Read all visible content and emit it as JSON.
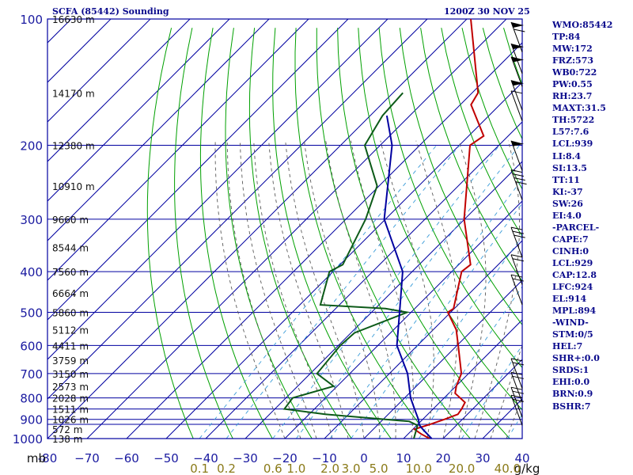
{
  "header": {
    "title": "SCFA (85442) Sounding",
    "datetime": "1200Z 30 NOV 25"
  },
  "indices": [
    "WMO:85442",
    "TP:84",
    "MW:172",
    "FRZ:573",
    "WB0:722",
    "PW:0.55",
    "RH:23.7",
    "MAXT:31.5",
    "TH:5722",
    "L57:7.6",
    "LCL:939",
    "LI:8.4",
    "SI:13.5",
    "TT:11",
    "KI:-37",
    "SW:26",
    "EI:4.0",
    "-PARCEL-",
    "CAPE:7",
    "CINH:0",
    "LCL:929",
    "CAP:12.8",
    "LFC:924",
    "EL:914",
    "MPL:894",
    "-WIND-",
    "STM:0/5",
    "HEL:7",
    "SHR+:0.0",
    "SRDS:1",
    "EHI:0.0",
    "BRN:0.9",
    "BSHR:7"
  ],
  "chart_data": {
    "type": "line",
    "title": "SCFA (85442) Sounding",
    "y_axis": {
      "unit": "mb",
      "scale": "log",
      "range": [
        1000,
        100
      ],
      "ticks": [
        {
          "p": 100,
          "label": "100"
        },
        {
          "p": 200,
          "label": "200"
        },
        {
          "p": 300,
          "label": "300"
        },
        {
          "p": 400,
          "label": "400"
        },
        {
          "p": 500,
          "label": "500"
        },
        {
          "p": 600,
          "label": "600"
        },
        {
          "p": 700,
          "label": "700"
        },
        {
          "p": 800,
          "label": "800"
        },
        {
          "p": 900,
          "label": "900"
        },
        {
          "p": 1000,
          "label": "1000"
        }
      ],
      "extra_gridlines": [
        850,
        925
      ]
    },
    "x_axis": {
      "range": [
        -80,
        40
      ],
      "ticks": [
        {
          "t": -80,
          "label": "-80"
        },
        {
          "t": -70,
          "label": "−70"
        },
        {
          "t": -60,
          "label": "−60"
        },
        {
          "t": -50,
          "label": "−50"
        },
        {
          "t": -40,
          "label": "−40"
        },
        {
          "t": -30,
          "label": "−30"
        },
        {
          "t": -20,
          "label": "−20"
        },
        {
          "t": -10,
          "label": "−10"
        },
        {
          "t": 0,
          "label": "0"
        },
        {
          "t": 10,
          "label": "10"
        },
        {
          "t": 20,
          "label": "20"
        },
        {
          "t": 30,
          "label": "30"
        },
        {
          "t": 40,
          "label": "40"
        }
      ],
      "unit_label": "mb",
      "unit_label_right": "g/kg"
    },
    "mixing_ratio_labels": [
      "0.1",
      "0.2",
      "0.6",
      "1.0",
      "2.0",
      "3.0",
      "5.0",
      "10.0",
      "20.0",
      "40.0"
    ],
    "height_labels": [
      {
        "p": 100,
        "label": "16630 m"
      },
      {
        "p": 150,
        "label": "14170 m"
      },
      {
        "p": 200,
        "label": "12380 m"
      },
      {
        "p": 250,
        "label": "10910 m"
      },
      {
        "p": 300,
        "label": "9660 m"
      },
      {
        "p": 350,
        "label": "8544 m"
      },
      {
        "p": 400,
        "label": "7560 m"
      },
      {
        "p": 450,
        "label": "6664 m"
      },
      {
        "p": 500,
        "label": "5860 m"
      },
      {
        "p": 550,
        "label": "5112 m"
      },
      {
        "p": 600,
        "label": "4411 m"
      },
      {
        "p": 650,
        "label": "3759 m"
      },
      {
        "p": 700,
        "label": "3150 m"
      },
      {
        "p": 750,
        "label": "2573 m"
      },
      {
        "p": 800,
        "label": "2028 m"
      },
      {
        "p": 850,
        "label": "1511 m"
      },
      {
        "p": 900,
        "label": "1026 m"
      },
      {
        "p": 950,
        "label": "572 m"
      },
      {
        "p": 1000,
        "label": "138 m"
      }
    ],
    "series": [
      {
        "role": "temperature",
        "color": "#c00000",
        "points": [
          {
            "p": 1000,
            "t": 16.6
          },
          {
            "p": 975,
            "t": 13.3
          },
          {
            "p": 950,
            "t": 10.4
          },
          {
            "p": 925,
            "t": 13.1
          },
          {
            "p": 900,
            "t": 15.5
          },
          {
            "p": 875,
            "t": 17.6
          },
          {
            "p": 850,
            "t": 17.2
          },
          {
            "p": 820,
            "t": 16.4
          },
          {
            "p": 780,
            "t": 11.6
          },
          {
            "p": 750,
            "t": 10.1
          },
          {
            "p": 700,
            "t": 8.2
          },
          {
            "p": 600,
            "t": 0.3
          },
          {
            "p": 550,
            "t": -4.2
          },
          {
            "p": 500,
            "t": -10.7
          },
          {
            "p": 490,
            "t": -10.2
          },
          {
            "p": 400,
            "t": -17.5
          },
          {
            "p": 385,
            "t": -17.0
          },
          {
            "p": 300,
            "t": -30.1
          },
          {
            "p": 200,
            "t": -47.3
          },
          {
            "p": 190,
            "t": -46.2
          },
          {
            "p": 160,
            "t": -57.3
          },
          {
            "p": 150,
            "t": -58.5
          },
          {
            "p": 100,
            "t": -79.0
          }
        ]
      },
      {
        "role": "dewpoint",
        "color": "#0c5a18",
        "points": [
          {
            "p": 1000,
            "t": 12.6
          },
          {
            "p": 930,
            "t": 10.2
          },
          {
            "p": 910,
            "t": 7.1
          },
          {
            "p": 875,
            "t": -16.0
          },
          {
            "p": 850,
            "t": -27.6
          },
          {
            "p": 800,
            "t": -28.3
          },
          {
            "p": 750,
            "t": -20.9
          },
          {
            "p": 700,
            "t": -28.3
          },
          {
            "p": 600,
            "t": -29.5
          },
          {
            "p": 560,
            "t": -29.1
          },
          {
            "p": 500,
            "t": -21.0
          },
          {
            "p": 490,
            "t": -27.4
          },
          {
            "p": 480,
            "t": -44.8
          },
          {
            "p": 400,
            "t": -50.9
          },
          {
            "p": 385,
            "t": -49.3
          },
          {
            "p": 300,
            "t": -55.0
          },
          {
            "p": 250,
            "t": -60.5
          },
          {
            "p": 200,
            "t": -73.9
          },
          {
            "p": 170,
            "t": -76.9
          },
          {
            "p": 150,
            "t": -77.5
          }
        ]
      },
      {
        "role": "parcel",
        "color": "#0000a0",
        "points": [
          {
            "p": 1000,
            "t": 17.1
          },
          {
            "p": 950,
            "t": 12.5
          },
          {
            "p": 929,
            "t": 10.6
          },
          {
            "p": 900,
            "t": 8.9
          },
          {
            "p": 850,
            "t": 5.3
          },
          {
            "p": 800,
            "t": 1.5
          },
          {
            "p": 700,
            "t": -5.4
          },
          {
            "p": 600,
            "t": -15.2
          },
          {
            "p": 500,
            "t": -22.9
          },
          {
            "p": 400,
            "t": -32.4
          },
          {
            "p": 300,
            "t": -50.3
          },
          {
            "p": 200,
            "t": -67.0
          },
          {
            "p": 170,
            "t": -75.8
          }
        ]
      }
    ],
    "wind_barbs": [
      {
        "p": 120,
        "flags": 1,
        "barbs": 1
      },
      {
        "p": 135,
        "flags": 1,
        "barbs": 0
      },
      {
        "p": 145,
        "flags": 1,
        "barbs": 0
      },
      {
        "p": 165,
        "flags": 1,
        "barbs": 0
      },
      {
        "p": 175,
        "flags": 0,
        "barbs": 1
      },
      {
        "p": 230,
        "flags": 1,
        "barbs": 0
      },
      {
        "p": 270,
        "flags": 0,
        "barbs": 4
      },
      {
        "p": 370,
        "flags": 0,
        "barbs": 3
      },
      {
        "p": 430,
        "flags": 0,
        "barbs": 2
      },
      {
        "p": 480,
        "flags": 0,
        "barbs": 2
      },
      {
        "p": 760,
        "flags": 0,
        "barbs": 2
      },
      {
        "p": 820,
        "flags": 0,
        "barbs": 2
      },
      {
        "p": 890,
        "flags": 0,
        "barbs": 2
      },
      {
        "p": 930,
        "flags": 0,
        "barbs": 2
      }
    ],
    "grid": true,
    "colors": {
      "frame": "#0000a0",
      "isobar": "#0000a0",
      "dry_adiabat": "#00a000",
      "moist_adiabat": "#5a5a5a",
      "mixing_ratio": "#3a9cd8",
      "text": "#0a0a8c",
      "mixing_label": "#8a7a18"
    }
  }
}
